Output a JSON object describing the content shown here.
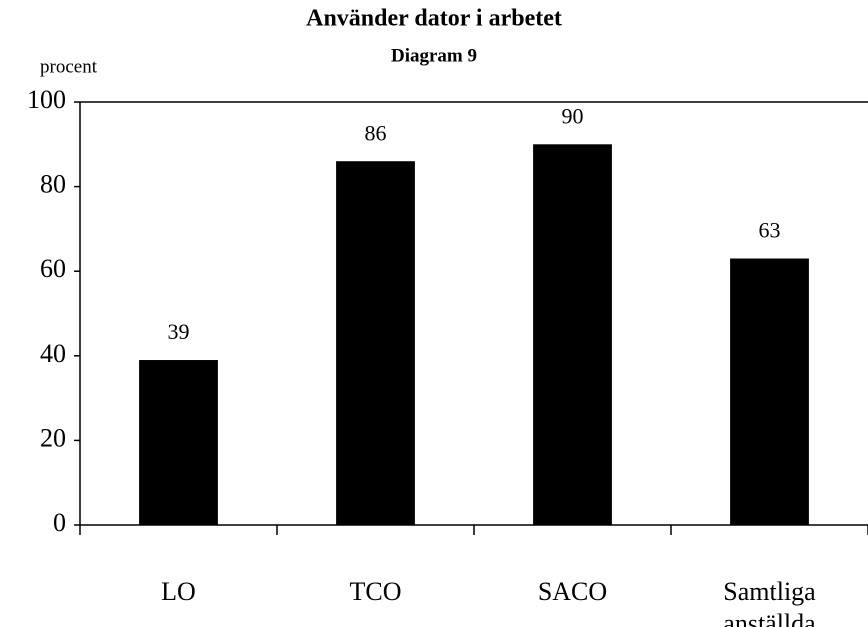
{
  "chart_data": {
    "type": "bar",
    "title": "Använder dator i arbetet",
    "subtitle": "Diagram 9",
    "y_axis_label": "procent",
    "categories": [
      "LO",
      "TCO",
      "SACO",
      "Samtliga anställda"
    ],
    "values": [
      39,
      86,
      90,
      63
    ],
    "color": "#000000",
    "ylim": [
      0,
      100
    ],
    "yticks": [
      0,
      20,
      40,
      60,
      80,
      100
    ],
    "grid": false
  }
}
